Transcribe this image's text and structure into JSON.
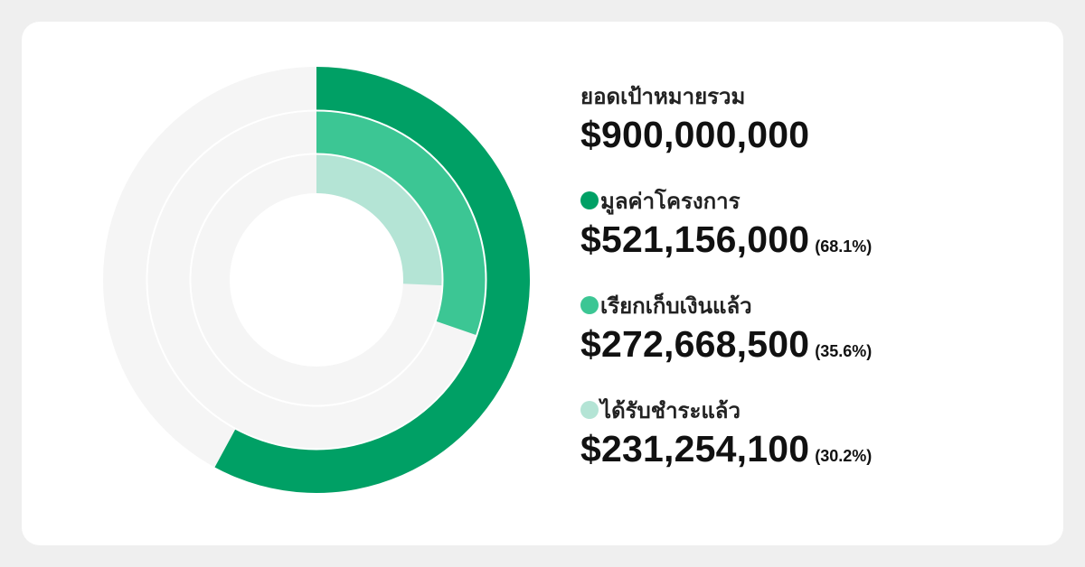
{
  "colors": {
    "background": "#efefef",
    "card": "#ffffff",
    "track": "#f5f5f5",
    "outer": "#00a065",
    "middle": "#3cc694",
    "inner": "#b4e4d5"
  },
  "summary": {
    "title": "ยอดเป้าหมายรวม",
    "amount": "$900,000,000"
  },
  "legend": [
    {
      "label": "มูลค่าโครงการ",
      "amount": "$521,156,000",
      "percent": "(68.1%)",
      "color": "#00a065"
    },
    {
      "label": "เรียกเก็บเงินแล้ว",
      "amount": "$272,668,500",
      "percent": "(35.6%)",
      "color": "#3cc694"
    },
    {
      "label": "ได้รับชำระแล้ว",
      "amount": "$231,254,100",
      "percent": "(30.2%)",
      "color": "#b4e4d5"
    }
  ],
  "chart_data": {
    "type": "pie",
    "variant": "concentric-radial-rings",
    "total": 900000000,
    "series": [
      {
        "name": "มูลค่าโครงการ",
        "value": 521156000,
        "percent": 68.1,
        "color": "#00a065"
      },
      {
        "name": "เรียกเก็บเงินแล้ว",
        "value": 272668500,
        "percent": 35.6,
        "color": "#3cc694"
      },
      {
        "name": "ได้รับชำระแล้ว",
        "value": 231254100,
        "percent": 30.2,
        "color": "#b4e4d5"
      }
    ]
  }
}
